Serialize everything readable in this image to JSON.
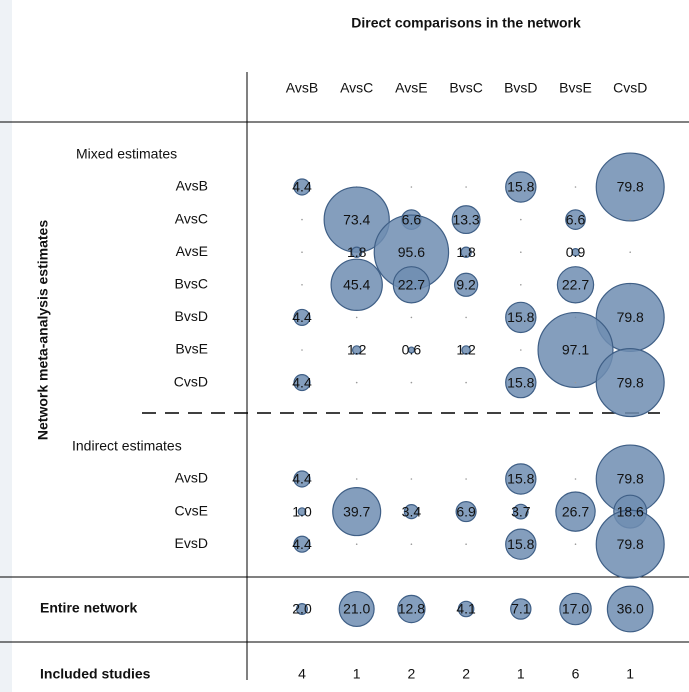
{
  "chart_data": {
    "type": "bubble",
    "title": "Direct comparisons in the network",
    "y_label": "Network meta-analysis estimates",
    "color": "#6f8db2",
    "columns": [
      "AvsB",
      "AvsC",
      "AvsE",
      "BvsC",
      "BvsD",
      "BvsE",
      "CvsD"
    ],
    "groups": [
      {
        "name": "Mixed estimates",
        "rows": [
          {
            "name": "AvsB",
            "values": [
              4.4,
              0,
              0,
              0,
              15.8,
              0,
              79.8
            ]
          },
          {
            "name": "AvsC",
            "values": [
              0,
              73.4,
              6.6,
              13.3,
              0,
              6.6,
              0
            ]
          },
          {
            "name": "AvsE",
            "values": [
              0,
              1.8,
              95.6,
              1.8,
              0,
              0.9,
              0
            ]
          },
          {
            "name": "BvsC",
            "values": [
              0,
              45.4,
              22.7,
              9.2,
              0,
              22.7,
              0
            ]
          },
          {
            "name": "BvsD",
            "values": [
              4.4,
              0,
              0,
              0,
              15.8,
              0,
              79.8
            ]
          },
          {
            "name": "BvsE",
            "values": [
              0,
              1.2,
              0.6,
              1.2,
              0,
              97.1,
              0
            ]
          },
          {
            "name": "CvsD",
            "values": [
              4.4,
              0,
              0,
              0,
              15.8,
              0,
              79.8
            ]
          }
        ]
      },
      {
        "name": "Indirect estimates",
        "rows": [
          {
            "name": "AvsD",
            "values": [
              4.4,
              0,
              0,
              0,
              15.8,
              0,
              79.8
            ]
          },
          {
            "name": "CvsE",
            "values": [
              1.0,
              39.7,
              3.4,
              6.9,
              3.7,
              26.7,
              18.6
            ],
            "value_labels": [
              "1.0",
              "39.7",
              "3.4",
              "6.9",
              "3.7",
              "26.7",
              "18.6"
            ]
          },
          {
            "name": "EvsD",
            "values": [
              4.4,
              0,
              0,
              0,
              15.8,
              0,
              79.8
            ]
          }
        ]
      }
    ],
    "total": {
      "name": "Entire network",
      "values": [
        2.0,
        21.0,
        12.8,
        4.1,
        7.1,
        17.0,
        36.0
      ],
      "value_labels": [
        "2.0",
        "21.0",
        "12.8",
        "4.1",
        "7.1",
        "17.0",
        "36.0"
      ]
    },
    "studies": {
      "name": "Included studies",
      "values": [
        4,
        1,
        2,
        2,
        1,
        6,
        1
      ]
    }
  }
}
